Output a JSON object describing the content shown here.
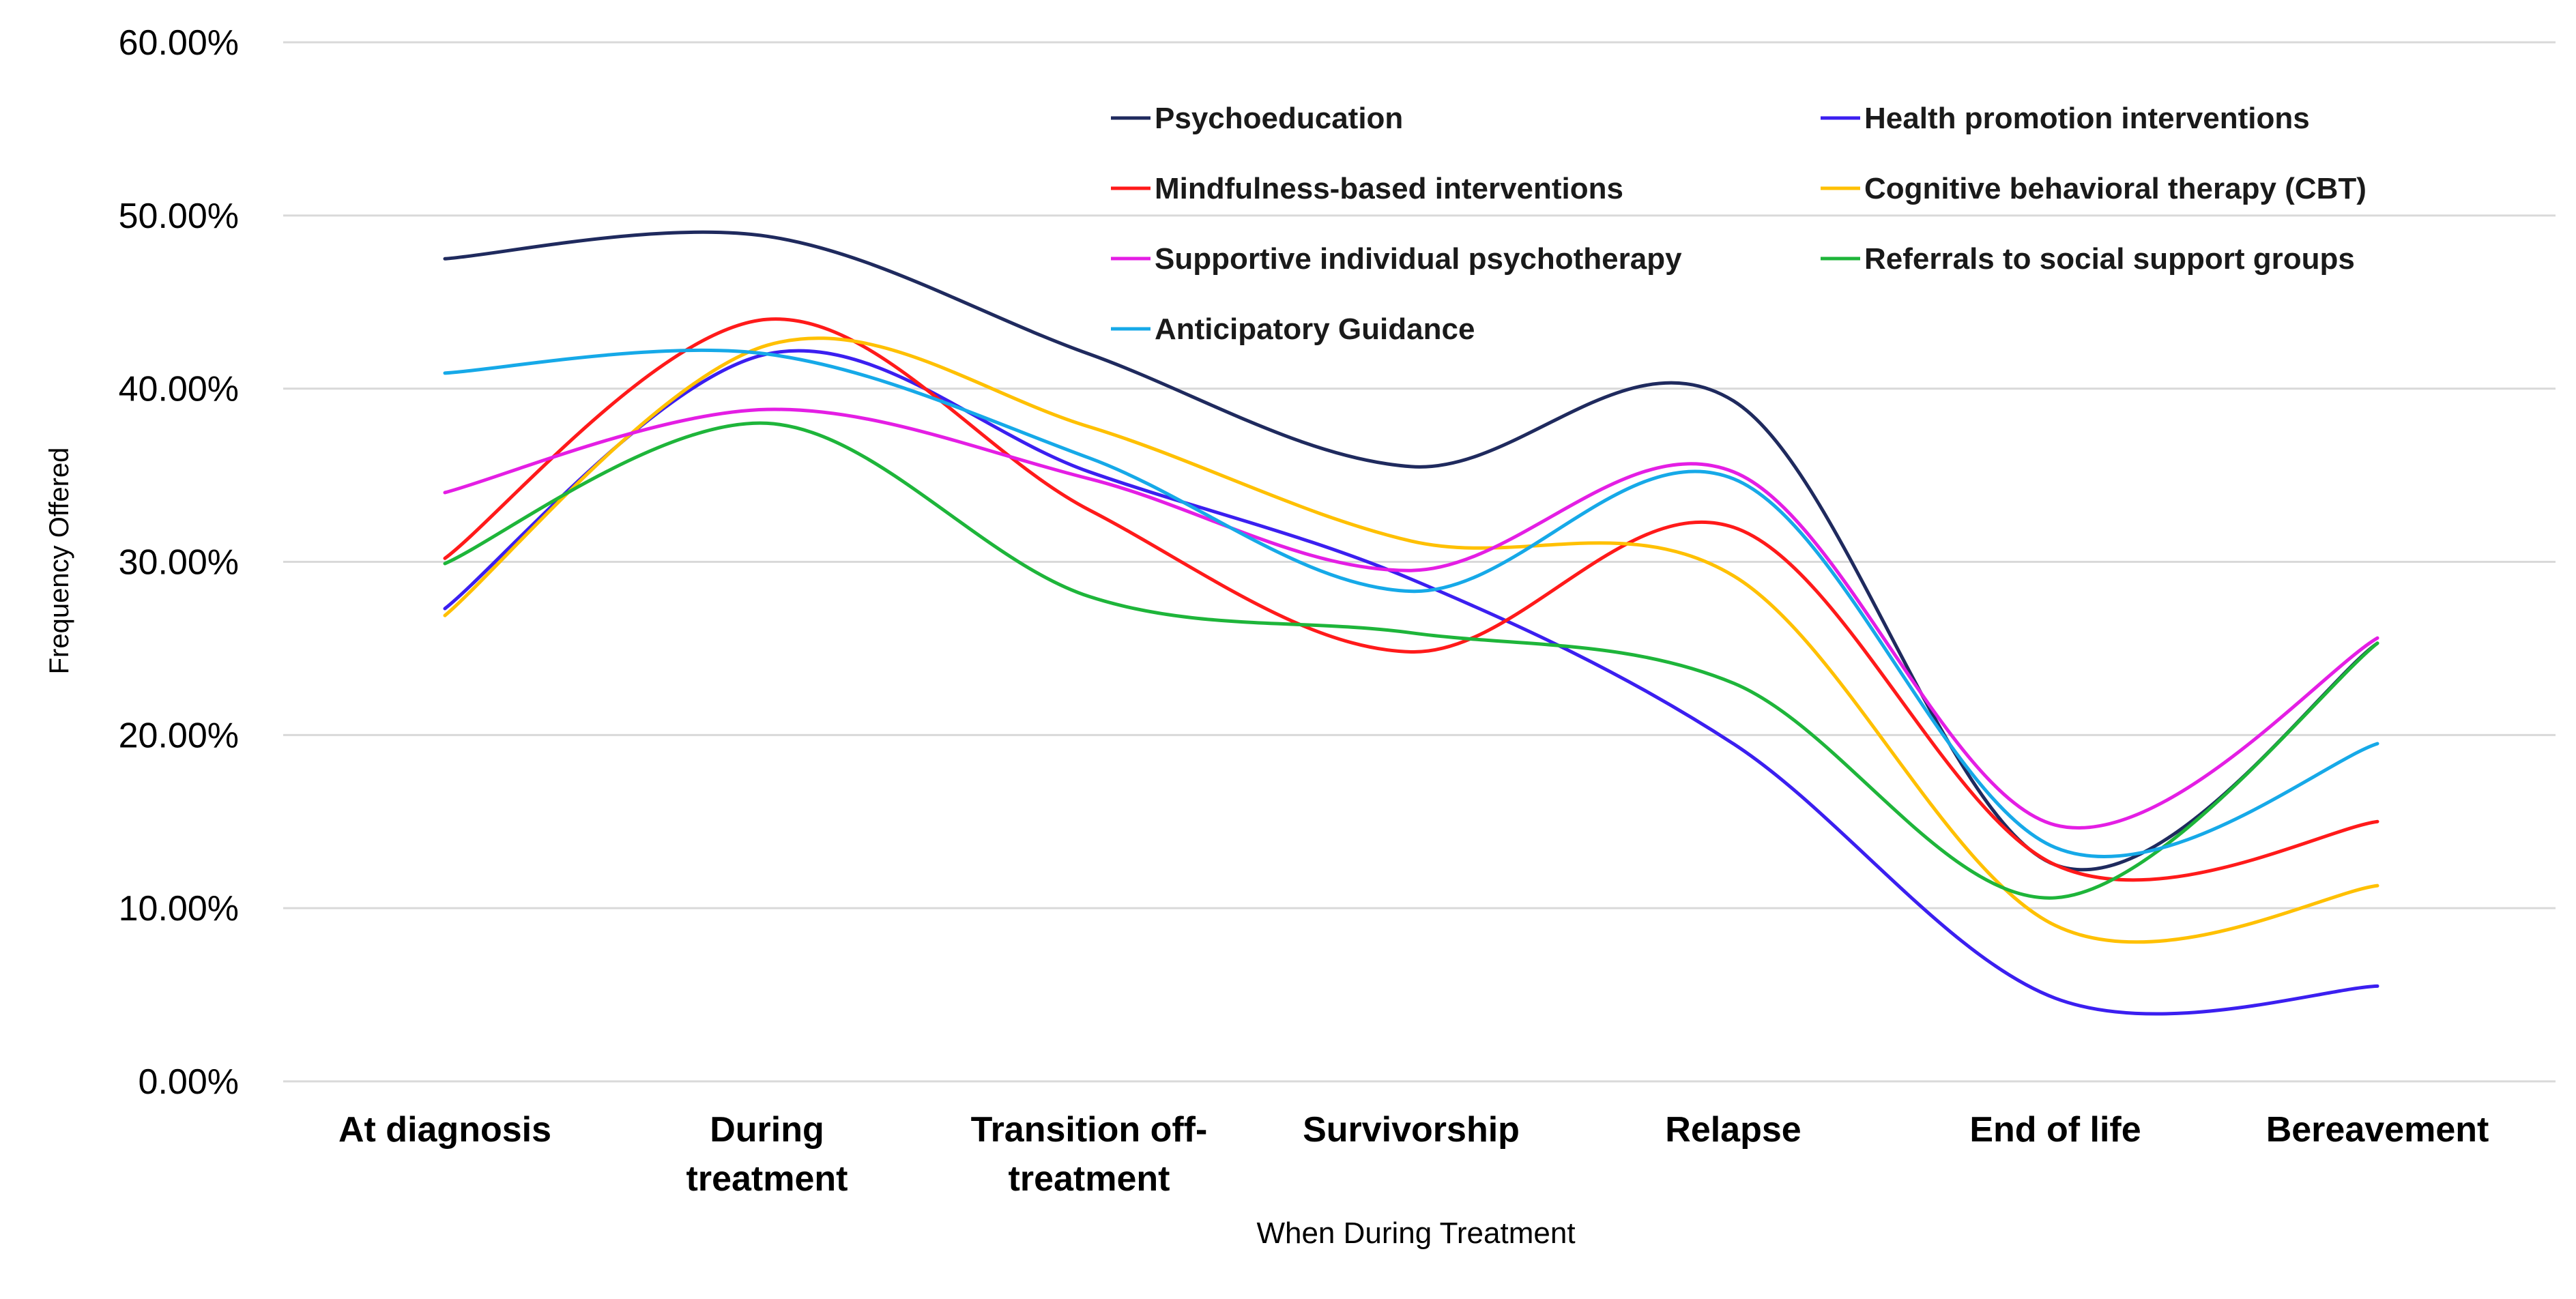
{
  "chart_data": {
    "type": "line",
    "smooth": true,
    "title": "",
    "xlabel": "When During Treatment",
    "ylabel": "Frequency Offered",
    "ylim": [
      0,
      60
    ],
    "y_ticks": [
      0,
      10,
      20,
      30,
      40,
      50,
      60
    ],
    "y_tick_labels": [
      "0.00%",
      "10.00%",
      "20.00%",
      "30.00%",
      "40.00%",
      "50.00%",
      "60.00%"
    ],
    "grid": "horizontal",
    "legend_position": "top-right",
    "categories": [
      "At diagnosis",
      "During treatment",
      "Transition off-treatment",
      "Survivorship",
      "Relapse",
      "End of life",
      "Bereavement"
    ],
    "category_label_lines": [
      [
        "At diagnosis"
      ],
      [
        "During",
        "treatment"
      ],
      [
        "Transition off-",
        "treatment"
      ],
      [
        "Survivorship"
      ],
      [
        "Relapse"
      ],
      [
        "End of life"
      ],
      [
        "Bereavement"
      ]
    ],
    "series": [
      {
        "name": "Psychoeducation",
        "color": "#1f2a5e",
        "values": [
          47.5,
          48.8,
          42.0,
          35.5,
          39.3,
          12.5,
          25.3
        ]
      },
      {
        "name": "Health promotion interventions",
        "color": "#3b1ff0",
        "values": [
          27.3,
          42.0,
          35.2,
          29.0,
          19.5,
          4.8,
          5.5
        ]
      },
      {
        "name": "Mindfulness-based interventions",
        "color": "#ff1a1a",
        "values": [
          30.2,
          44.0,
          33.0,
          24.8,
          32.0,
          12.5,
          15.0
        ]
      },
      {
        "name": "Cognitive behavioral therapy (CBT)",
        "color": "#ffc000",
        "values": [
          26.9,
          42.5,
          37.8,
          31.2,
          29.2,
          9.0,
          11.3
        ]
      },
      {
        "name": "Supportive individual psychotherapy",
        "color": "#e41ee4",
        "values": [
          34.0,
          38.8,
          34.8,
          29.5,
          35.2,
          14.8,
          25.6
        ]
      },
      {
        "name": "Referrals to social support groups",
        "color": "#1eb53a",
        "values": [
          29.9,
          38.0,
          28.0,
          25.9,
          23.0,
          10.6,
          25.3
        ]
      },
      {
        "name": "Anticipatory Guidance",
        "color": "#16a9e8",
        "values": [
          40.9,
          42.0,
          36.0,
          28.3,
          34.8,
          13.5,
          19.5
        ]
      }
    ]
  }
}
